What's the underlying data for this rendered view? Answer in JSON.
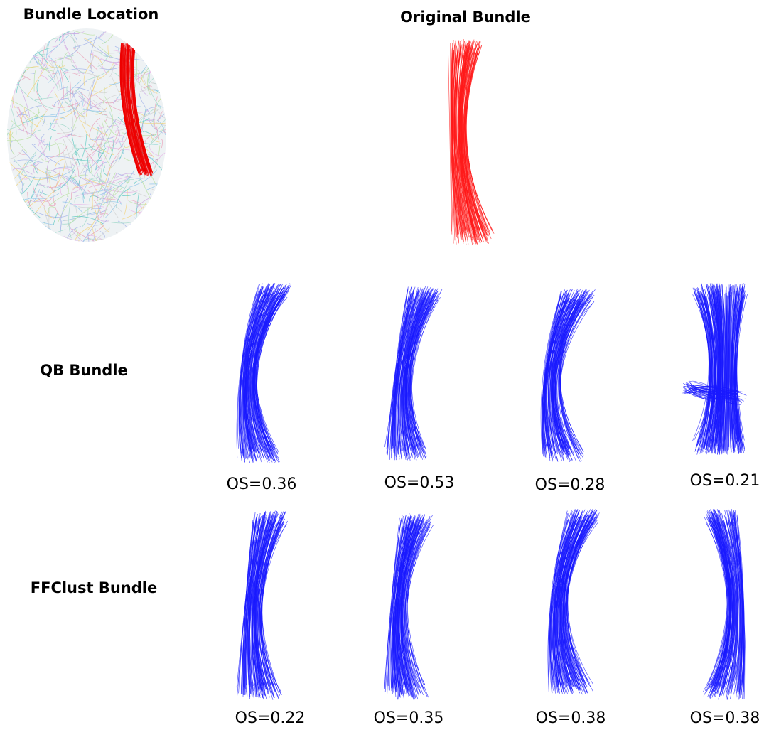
{
  "header": {
    "bundle_location": "Bundle Location",
    "original_bundle": "Original Bundle"
  },
  "rows": [
    {
      "label": "QB Bundle",
      "scores": [
        "OS=0.36",
        "OS=0.53",
        "OS=0.28",
        "OS=0.21"
      ]
    },
    {
      "label": "FFClust Bundle",
      "scores": [
        "OS=0.22",
        "OS=0.35",
        "OS=0.38",
        "OS=0.38"
      ]
    }
  ]
}
